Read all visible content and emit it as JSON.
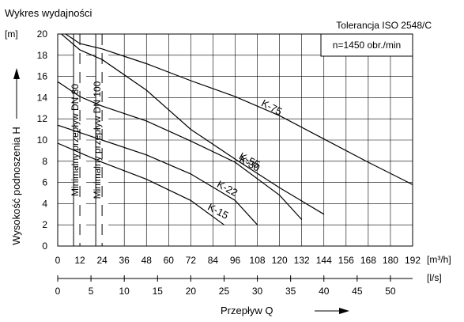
{
  "chart_data": {
    "type": "line",
    "title": "Wykres wydajności",
    "tolerance_label": "Tolerancja ISO 2548/C",
    "speed_label": "n=1450 obr./min",
    "ylabel": "Wysokość podnoszenia H",
    "y_unit": "[m]",
    "xlabel": "Przepływ Q",
    "x_unit_m3h": "[m³/h]",
    "x_unit_ls": "[l/s]",
    "ylim": [
      0,
      20
    ],
    "y_ticks": [
      0,
      2,
      4,
      6,
      8,
      10,
      12,
      14,
      16,
      18,
      20
    ],
    "xlim_m3h": [
      0,
      192
    ],
    "x_ticks_m3h": [
      0,
      12,
      24,
      36,
      48,
      60,
      72,
      84,
      96,
      108,
      120,
      132,
      144,
      156,
      168,
      180,
      192
    ],
    "x_ticks_ls": [
      0,
      5,
      10,
      15,
      20,
      25,
      30,
      35,
      40,
      45,
      50
    ],
    "grid": true,
    "min_flow_labels": [
      {
        "label": "Minimalny przepływ DN 80",
        "x": 12
      },
      {
        "label": "Minimalny przepływ DN 100",
        "x": 24
      }
    ],
    "series": [
      {
        "name": "K-75",
        "x": [
          0,
          12,
          24,
          48,
          72,
          96,
          120,
          144,
          168,
          192
        ],
        "y": [
          20.5,
          19.1,
          18.6,
          17.2,
          15.6,
          14.1,
          12.3,
          10.1,
          7.9,
          5.8
        ]
      },
      {
        "name": "K-55",
        "x": [
          0,
          12,
          24,
          48,
          72,
          96,
          120,
          144
        ],
        "y": [
          20.3,
          18.5,
          17.6,
          14.7,
          11.0,
          8.2,
          5.5,
          3.0
        ]
      },
      {
        "name": "K-30",
        "x": [
          0,
          12,
          24,
          48,
          72,
          96,
          120,
          132
        ],
        "y": [
          15.5,
          14.1,
          13.2,
          11.8,
          9.9,
          7.9,
          4.8,
          2.5
        ]
      },
      {
        "name": "K-22",
        "x": [
          0,
          12,
          24,
          48,
          72,
          96,
          108
        ],
        "y": [
          11.4,
          10.7,
          10.0,
          8.6,
          6.8,
          4.3,
          2.0
        ]
      },
      {
        "name": "K-15",
        "x": [
          0,
          12,
          24,
          48,
          72,
          90
        ],
        "y": [
          9.7,
          8.8,
          7.9,
          6.3,
          4.3,
          2.0
        ]
      }
    ]
  }
}
